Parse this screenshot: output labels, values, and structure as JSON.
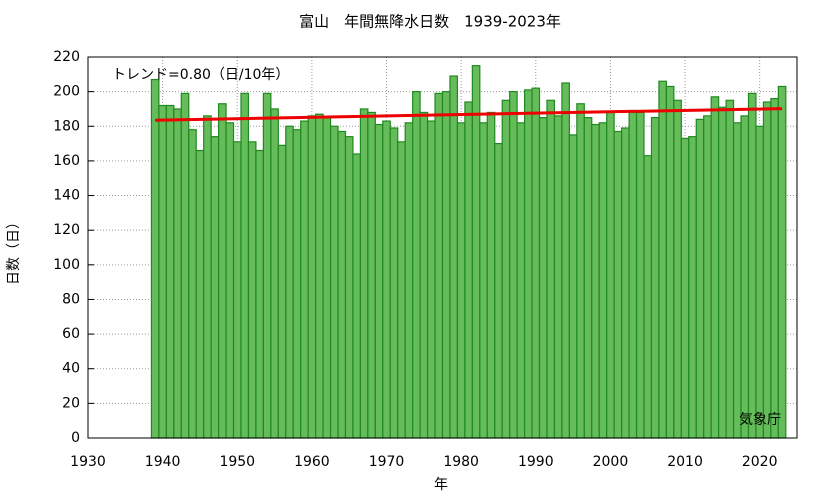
{
  "chart_data": {
    "type": "bar",
    "title": "富山　年間無降水日数　1939-2023年",
    "x_label": "年",
    "y_label": "日数（日）",
    "annotation": "トレンド=0.80（日/10年）",
    "credit": "気象庁",
    "x": [
      1939,
      1940,
      1941,
      1942,
      1943,
      1944,
      1945,
      1946,
      1947,
      1948,
      1949,
      1950,
      1951,
      1952,
      1953,
      1954,
      1955,
      1956,
      1957,
      1958,
      1959,
      1960,
      1961,
      1962,
      1963,
      1964,
      1965,
      1966,
      1967,
      1968,
      1969,
      1970,
      1971,
      1972,
      1973,
      1974,
      1975,
      1976,
      1977,
      1978,
      1979,
      1980,
      1981,
      1982,
      1983,
      1984,
      1985,
      1986,
      1987,
      1988,
      1989,
      1990,
      1991,
      1992,
      1993,
      1994,
      1995,
      1996,
      1997,
      1998,
      1999,
      2000,
      2001,
      2002,
      2003,
      2004,
      2005,
      2006,
      2007,
      2008,
      2009,
      2010,
      2011,
      2012,
      2013,
      2014,
      2015,
      2016,
      2017,
      2018,
      2019,
      2020,
      2021,
      2022,
      2023
    ],
    "values": [
      207,
      192,
      192,
      190,
      199,
      178,
      166,
      186,
      174,
      193,
      182,
      171,
      199,
      171,
      166,
      199,
      190,
      169,
      180,
      178,
      183,
      186,
      187,
      185,
      180,
      177,
      174,
      164,
      190,
      188,
      181,
      183,
      179,
      171,
      182,
      200,
      188,
      183,
      199,
      200,
      209,
      182,
      194,
      215,
      182,
      188,
      170,
      195,
      200,
      182,
      201,
      202,
      185,
      195,
      186,
      205,
      175,
      193,
      185,
      181,
      182,
      188,
      177,
      179,
      188,
      188,
      163,
      185,
      206,
      203,
      195,
      173,
      174,
      184,
      186,
      197,
      191,
      195,
      182,
      186,
      199,
      180,
      194,
      196,
      203
    ],
    "color": "#66bb5a",
    "edge_color": "#1f8a1f",
    "trend": {
      "x": [
        1939,
        2023
      ],
      "values": [
        183.5,
        190.2
      ],
      "color": "#ee0000"
    },
    "xlim": [
      1930,
      2025
    ],
    "xticks": [
      1930,
      1940,
      1950,
      1960,
      1970,
      1980,
      1990,
      2000,
      2010,
      2020
    ],
    "ylim": [
      0,
      220
    ],
    "yticks": [
      0,
      20,
      40,
      60,
      80,
      100,
      120,
      140,
      160,
      180,
      200,
      220
    ],
    "grid": true
  }
}
